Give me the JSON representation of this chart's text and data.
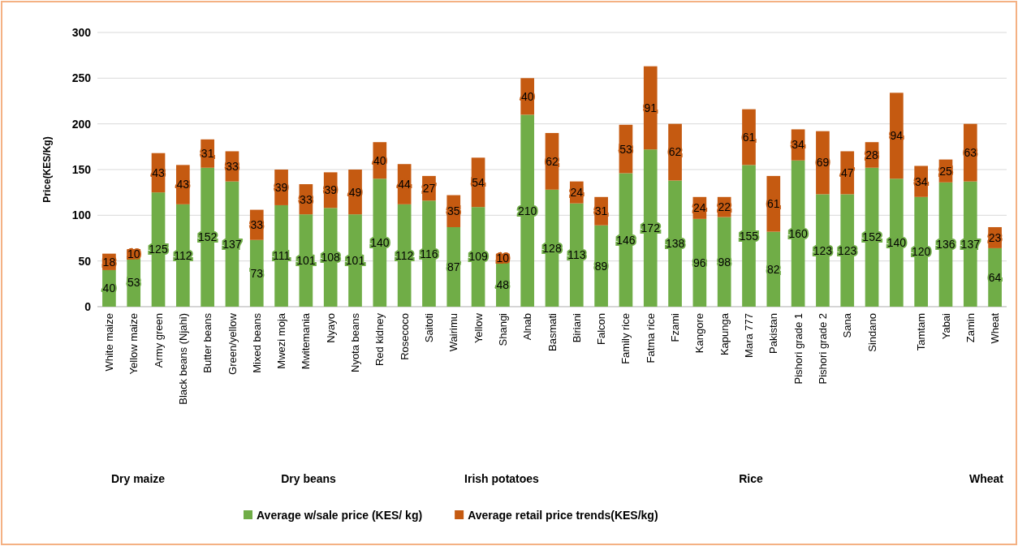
{
  "chart_data": {
    "type": "bar",
    "stacked": true,
    "ylabel": "Price(KES/Kg)",
    "categories": [
      "White maize",
      "Yellow maize",
      "Army green",
      "Black beans (Njahi)",
      "Butter beans",
      "Green/yellow",
      "Mixed beans",
      "Mwezi moja",
      "Mwitemania",
      "Nyayo",
      "Nyota beans",
      "Red kidney",
      "Rosecoco",
      "Saitoti",
      "Wairimu",
      "Yellow",
      "Shangi",
      "Alnab",
      "Basmati",
      "Biriani",
      "Falcon",
      "Family rice",
      "Fatma rice",
      "Fzami",
      "Kangore",
      "Kapunga",
      "Mara 777",
      "Pakistan",
      "Pishori grade 1",
      "Pishori grade 2",
      "Sana",
      "Sindano",
      null,
      "Tamtam",
      "Yabai",
      "Zamin",
      "Wheat"
    ],
    "series": [
      {
        "name": "Average w/sale price (KES/ kg)",
        "color": "#70ad47",
        "values": [
          40,
          53,
          125,
          112,
          152,
          137,
          73,
          111,
          101,
          108,
          101,
          140,
          112,
          116,
          87,
          109,
          48,
          210,
          128,
          113,
          89,
          146,
          172,
          138,
          96,
          98,
          155,
          82,
          160,
          123,
          123,
          152,
          140,
          120,
          136,
          137,
          64
        ]
      },
      {
        "name": "Average retail price trends(KES/kg)",
        "color": "#c55a11",
        "values": [
          18,
          10,
          43,
          43,
          31,
          33,
          33,
          39,
          33,
          39,
          49,
          40,
          44,
          27,
          35,
          54,
          10,
          40,
          62,
          24,
          31,
          53,
          91,
          62,
          24,
          22,
          61,
          61,
          34,
          69,
          47,
          28,
          94,
          34,
          25,
          63,
          23
        ]
      }
    ],
    "ylim": [
      0,
      300
    ],
    "yticks": [
      0,
      50,
      100,
      150,
      200,
      250,
      300
    ],
    "grid": "y",
    "legend": "bottom",
    "data_labels": true,
    "annotations": [
      "Dry maize",
      "Dry beans",
      "Irish potatoes",
      "Rice",
      "Wheat"
    ]
  }
}
